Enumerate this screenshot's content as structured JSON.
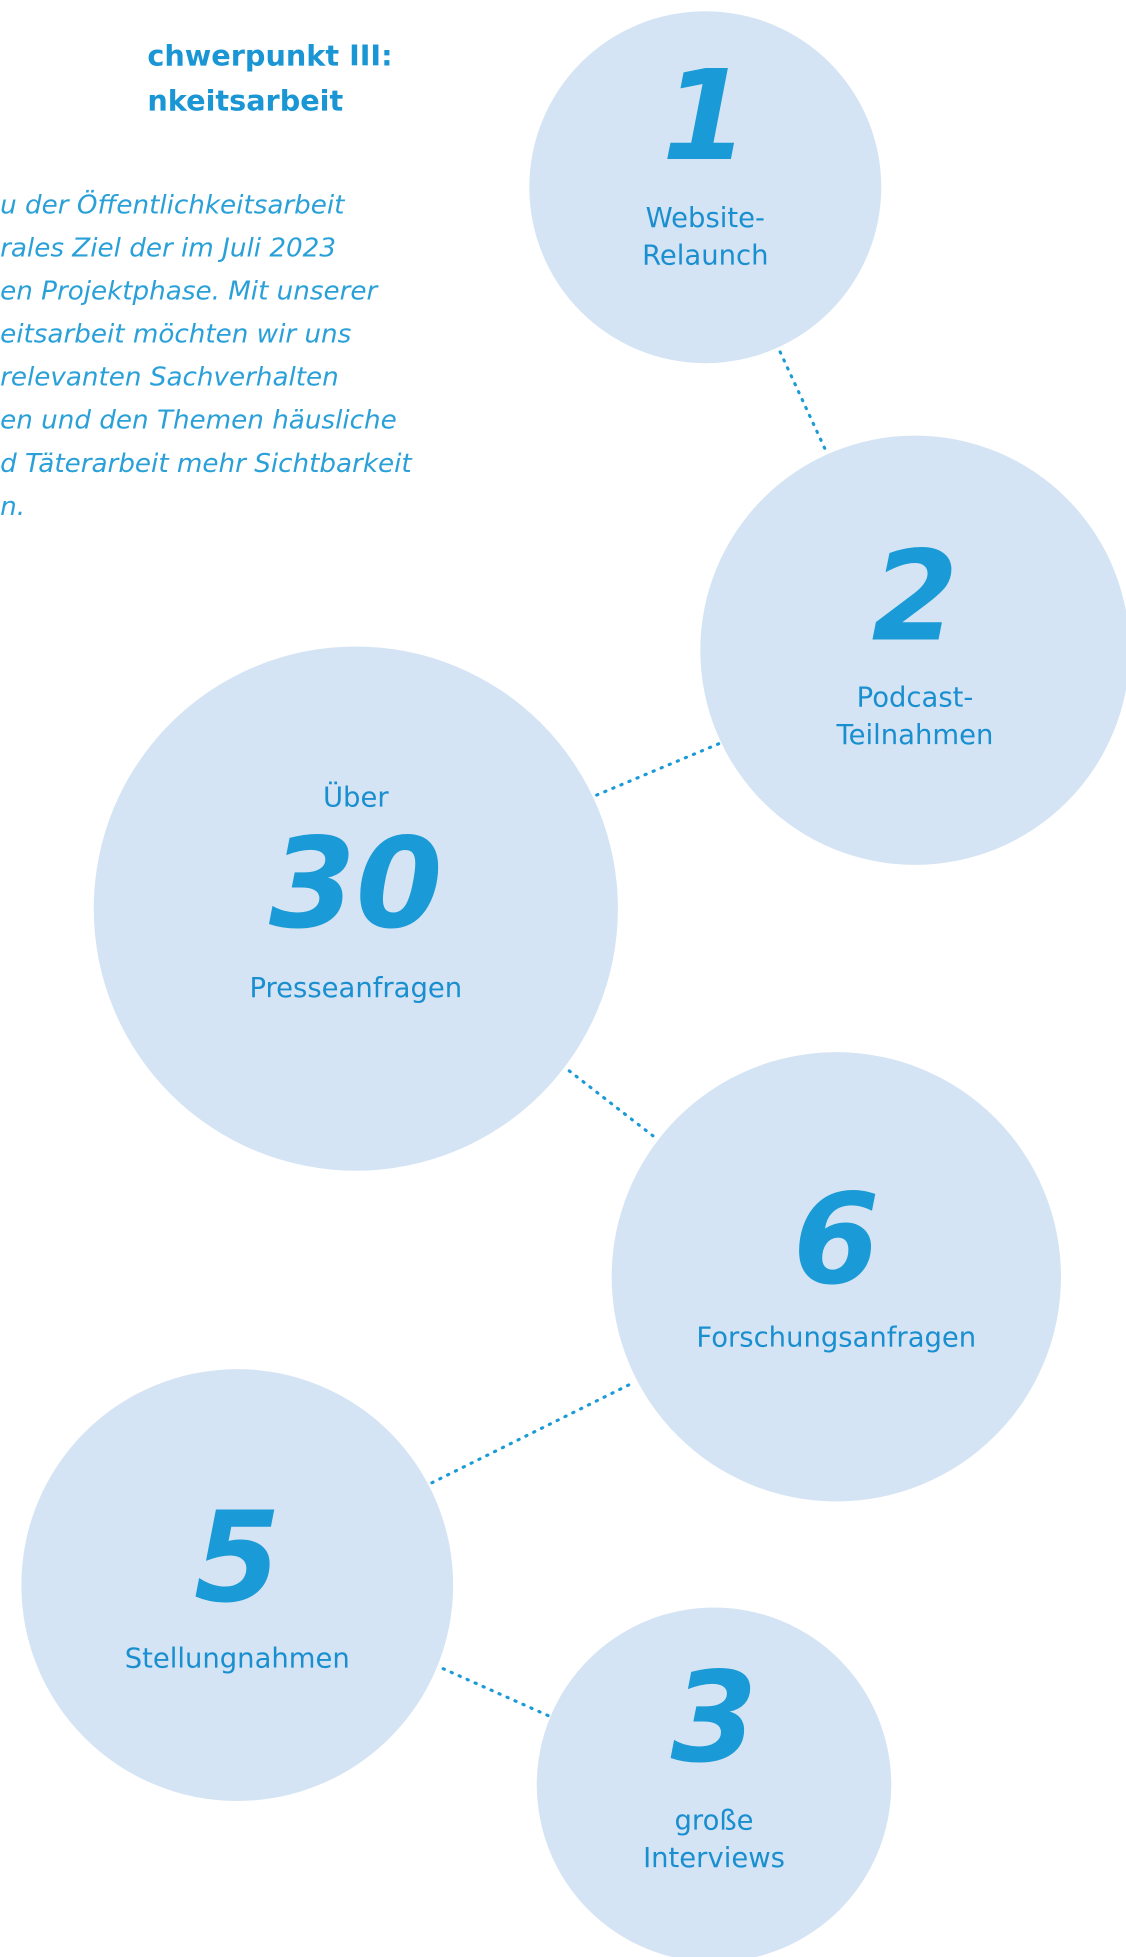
{
  "header": {
    "title": [
      "chwerpunkt III:",
      "nkeitsarbeit"
    ]
  },
  "intro": [
    "u der Öffentlichkeitsarbeit",
    "rales Ziel der im Juli 2023",
    "en Projektphase. Mit unserer",
    "eitsarbeit möchten wir uns",
    " relevanten Sachverhalten",
    "en und den Themen häusliche",
    "d Täterarbeit mehr Sichtbarkeit",
    "n."
  ],
  "items": [
    {
      "number": "1",
      "label": [
        "Website-",
        "Relaunch"
      ]
    },
    {
      "number": "2",
      "label": [
        "Podcast-",
        "Teilnahmen"
      ]
    },
    {
      "prefix": "Über",
      "number": "30",
      "label": [
        "Presseanfragen"
      ]
    },
    {
      "number": "6",
      "label": [
        "Forschungsanfragen"
      ]
    },
    {
      "number": "5",
      "label": [
        "Stellungnahmen"
      ]
    },
    {
      "number": "3",
      "label": [
        "große",
        "Interviews"
      ]
    }
  ]
}
